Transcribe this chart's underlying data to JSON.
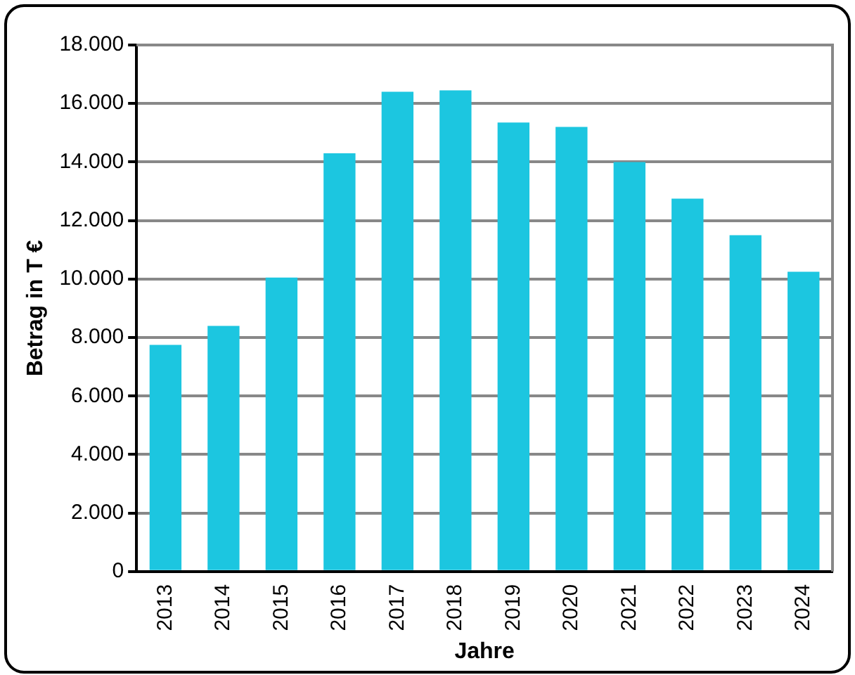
{
  "chart_data": {
    "type": "bar",
    "xlabel": "Jahre",
    "ylabel": "Betrag in T €",
    "categories": [
      "2013",
      "2014",
      "2015",
      "2016",
      "2017",
      "2018",
      "2019",
      "2020",
      "2021",
      "2022",
      "2023",
      "2024"
    ],
    "values": [
      7750,
      8400,
      10050,
      14300,
      16400,
      16450,
      15350,
      15200,
      14000,
      12750,
      11500,
      10250
    ],
    "color": "#1cc6e0",
    "ylim": [
      0,
      18000
    ],
    "yticks": [
      {
        "value": 0,
        "label": "0"
      },
      {
        "value": 2000,
        "label": "2.000"
      },
      {
        "value": 4000,
        "label": "4.000"
      },
      {
        "value": 6000,
        "label": "6.000"
      },
      {
        "value": 8000,
        "label": "8.000"
      },
      {
        "value": 10000,
        "label": "10.000"
      },
      {
        "value": 12000,
        "label": "12.000"
      },
      {
        "value": 14000,
        "label": "14.000"
      },
      {
        "value": 16000,
        "label": "16.000"
      },
      {
        "value": 18000,
        "label": "18.000"
      }
    ],
    "grid": "y",
    "legend": false
  }
}
